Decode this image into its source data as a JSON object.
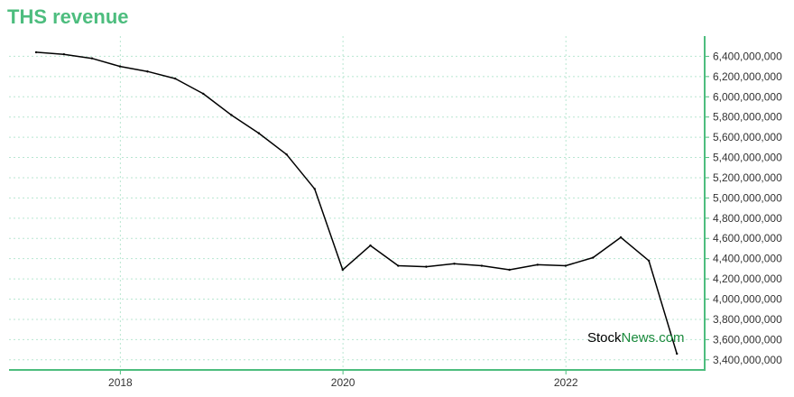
{
  "chart_data": {
    "type": "line",
    "title": "THS revenue",
    "xlabel": "",
    "ylabel": "",
    "x_ticks": [
      "2018",
      "2020",
      "2022"
    ],
    "y_ticks": [
      "3,400,000,000",
      "3,600,000,000",
      "3,800,000,000",
      "4,000,000,000",
      "4,200,000,000",
      "4,400,000,000",
      "4,600,000,000",
      "4,800,000,000",
      "5,000,000,000",
      "5,200,000,000",
      "5,400,000,000",
      "5,600,000,000",
      "5,800,000,000",
      "6,000,000,000",
      "6,200,000,000",
      "6,400,000,000"
    ],
    "ylim": [
      3300000000,
      6600000000
    ],
    "grid": true,
    "series": [
      {
        "name": "",
        "points": [
          {
            "x": "2017-03-31",
            "y": 6440000000
          },
          {
            "x": "2017-06-30",
            "y": 6420000000
          },
          {
            "x": "2017-09-30",
            "y": 6380000000
          },
          {
            "x": "2017-12-31",
            "y": 6300000000
          },
          {
            "x": "2018-03-31",
            "y": 6250000000
          },
          {
            "x": "2018-06-30",
            "y": 6180000000
          },
          {
            "x": "2018-09-30",
            "y": 6030000000
          },
          {
            "x": "2018-12-31",
            "y": 5820000000
          },
          {
            "x": "2019-03-31",
            "y": 5640000000
          },
          {
            "x": "2019-06-30",
            "y": 5430000000
          },
          {
            "x": "2019-09-30",
            "y": 5090000000
          },
          {
            "x": "2019-12-31",
            "y": 4290000000
          },
          {
            "x": "2020-03-31",
            "y": 4530000000
          },
          {
            "x": "2020-06-30",
            "y": 4330000000
          },
          {
            "x": "2020-09-30",
            "y": 4320000000
          },
          {
            "x": "2020-12-31",
            "y": 4350000000
          },
          {
            "x": "2021-03-31",
            "y": 4330000000
          },
          {
            "x": "2021-06-30",
            "y": 4290000000
          },
          {
            "x": "2021-09-30",
            "y": 4340000000
          },
          {
            "x": "2021-12-31",
            "y": 4330000000
          },
          {
            "x": "2022-03-31",
            "y": 4410000000
          },
          {
            "x": "2022-06-30",
            "y": 4610000000
          },
          {
            "x": "2022-09-30",
            "y": 4380000000
          },
          {
            "x": "2022-12-31",
            "y": 3460000000
          }
        ]
      }
    ]
  },
  "watermark": {
    "part1": "Stock",
    "part2": "News.com"
  },
  "colors": {
    "accent": "#4dbd7e",
    "line": "#000000",
    "grid": "#b8e6d1",
    "watermark_green": "#1a8a3c"
  }
}
